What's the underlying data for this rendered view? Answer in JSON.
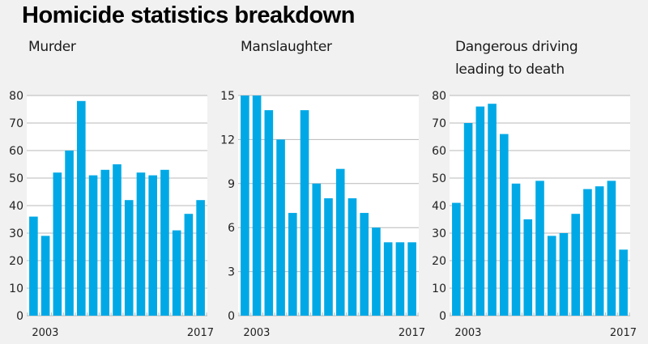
{
  "page": {
    "title": "Homicide statistics breakdown"
  },
  "colors": {
    "bar": "#00a9e6",
    "gridline": "#b8b8b8",
    "plot_background": "#ffffff",
    "page_background": "#f1f1f1"
  },
  "chart_data": [
    {
      "type": "bar",
      "title": "Murder",
      "title_lines": [
        "Murder"
      ],
      "categories": [
        "2003",
        "2004",
        "2005",
        "2006",
        "2007",
        "2008",
        "2009",
        "2010",
        "2011",
        "2012",
        "2013",
        "2014",
        "2015",
        "2016",
        "2017"
      ],
      "values": [
        36,
        29,
        52,
        60,
        78,
        51,
        53,
        55,
        42,
        52,
        51,
        53,
        31,
        37,
        42
      ],
      "xtick_labels": [
        "2003",
        "2017"
      ],
      "yticks": [
        0,
        10,
        20,
        30,
        40,
        50,
        60,
        70,
        80
      ],
      "ylim": [
        0,
        80
      ],
      "xlabel": "",
      "ylabel": "",
      "grid": true
    },
    {
      "type": "bar",
      "title": "Manslaughter",
      "title_lines": [
        "Manslaughter"
      ],
      "categories": [
        "2003",
        "2004",
        "2005",
        "2006",
        "2007",
        "2008",
        "2009",
        "2010",
        "2011",
        "2012",
        "2013",
        "2014",
        "2015",
        "2016",
        "2017"
      ],
      "values": [
        15,
        15,
        14,
        12,
        7,
        14,
        9,
        8,
        10,
        8,
        7,
        6,
        5,
        5,
        5
      ],
      "xtick_labels": [
        "2003",
        "2017"
      ],
      "yticks": [
        0,
        3,
        6,
        9,
        12,
        15
      ],
      "ylim": [
        0,
        15
      ],
      "xlabel": "",
      "ylabel": "",
      "grid": true
    },
    {
      "type": "bar",
      "title": "Dangerous driving leading to death",
      "title_lines": [
        "Dangerous driving",
        "leading to death"
      ],
      "categories": [
        "2003",
        "2004",
        "2005",
        "2006",
        "2007",
        "2008",
        "2009",
        "2010",
        "2011",
        "2012",
        "2013",
        "2014",
        "2015",
        "2016",
        "2017"
      ],
      "values": [
        41,
        70,
        76,
        77,
        66,
        48,
        35,
        49,
        29,
        30,
        37,
        46,
        47,
        49,
        24
      ],
      "xtick_labels": [
        "2003",
        "2017"
      ],
      "yticks": [
        0,
        10,
        20,
        30,
        40,
        50,
        60,
        70,
        80
      ],
      "ylim": [
        0,
        80
      ],
      "xlabel": "",
      "ylabel": "",
      "grid": true
    }
  ]
}
